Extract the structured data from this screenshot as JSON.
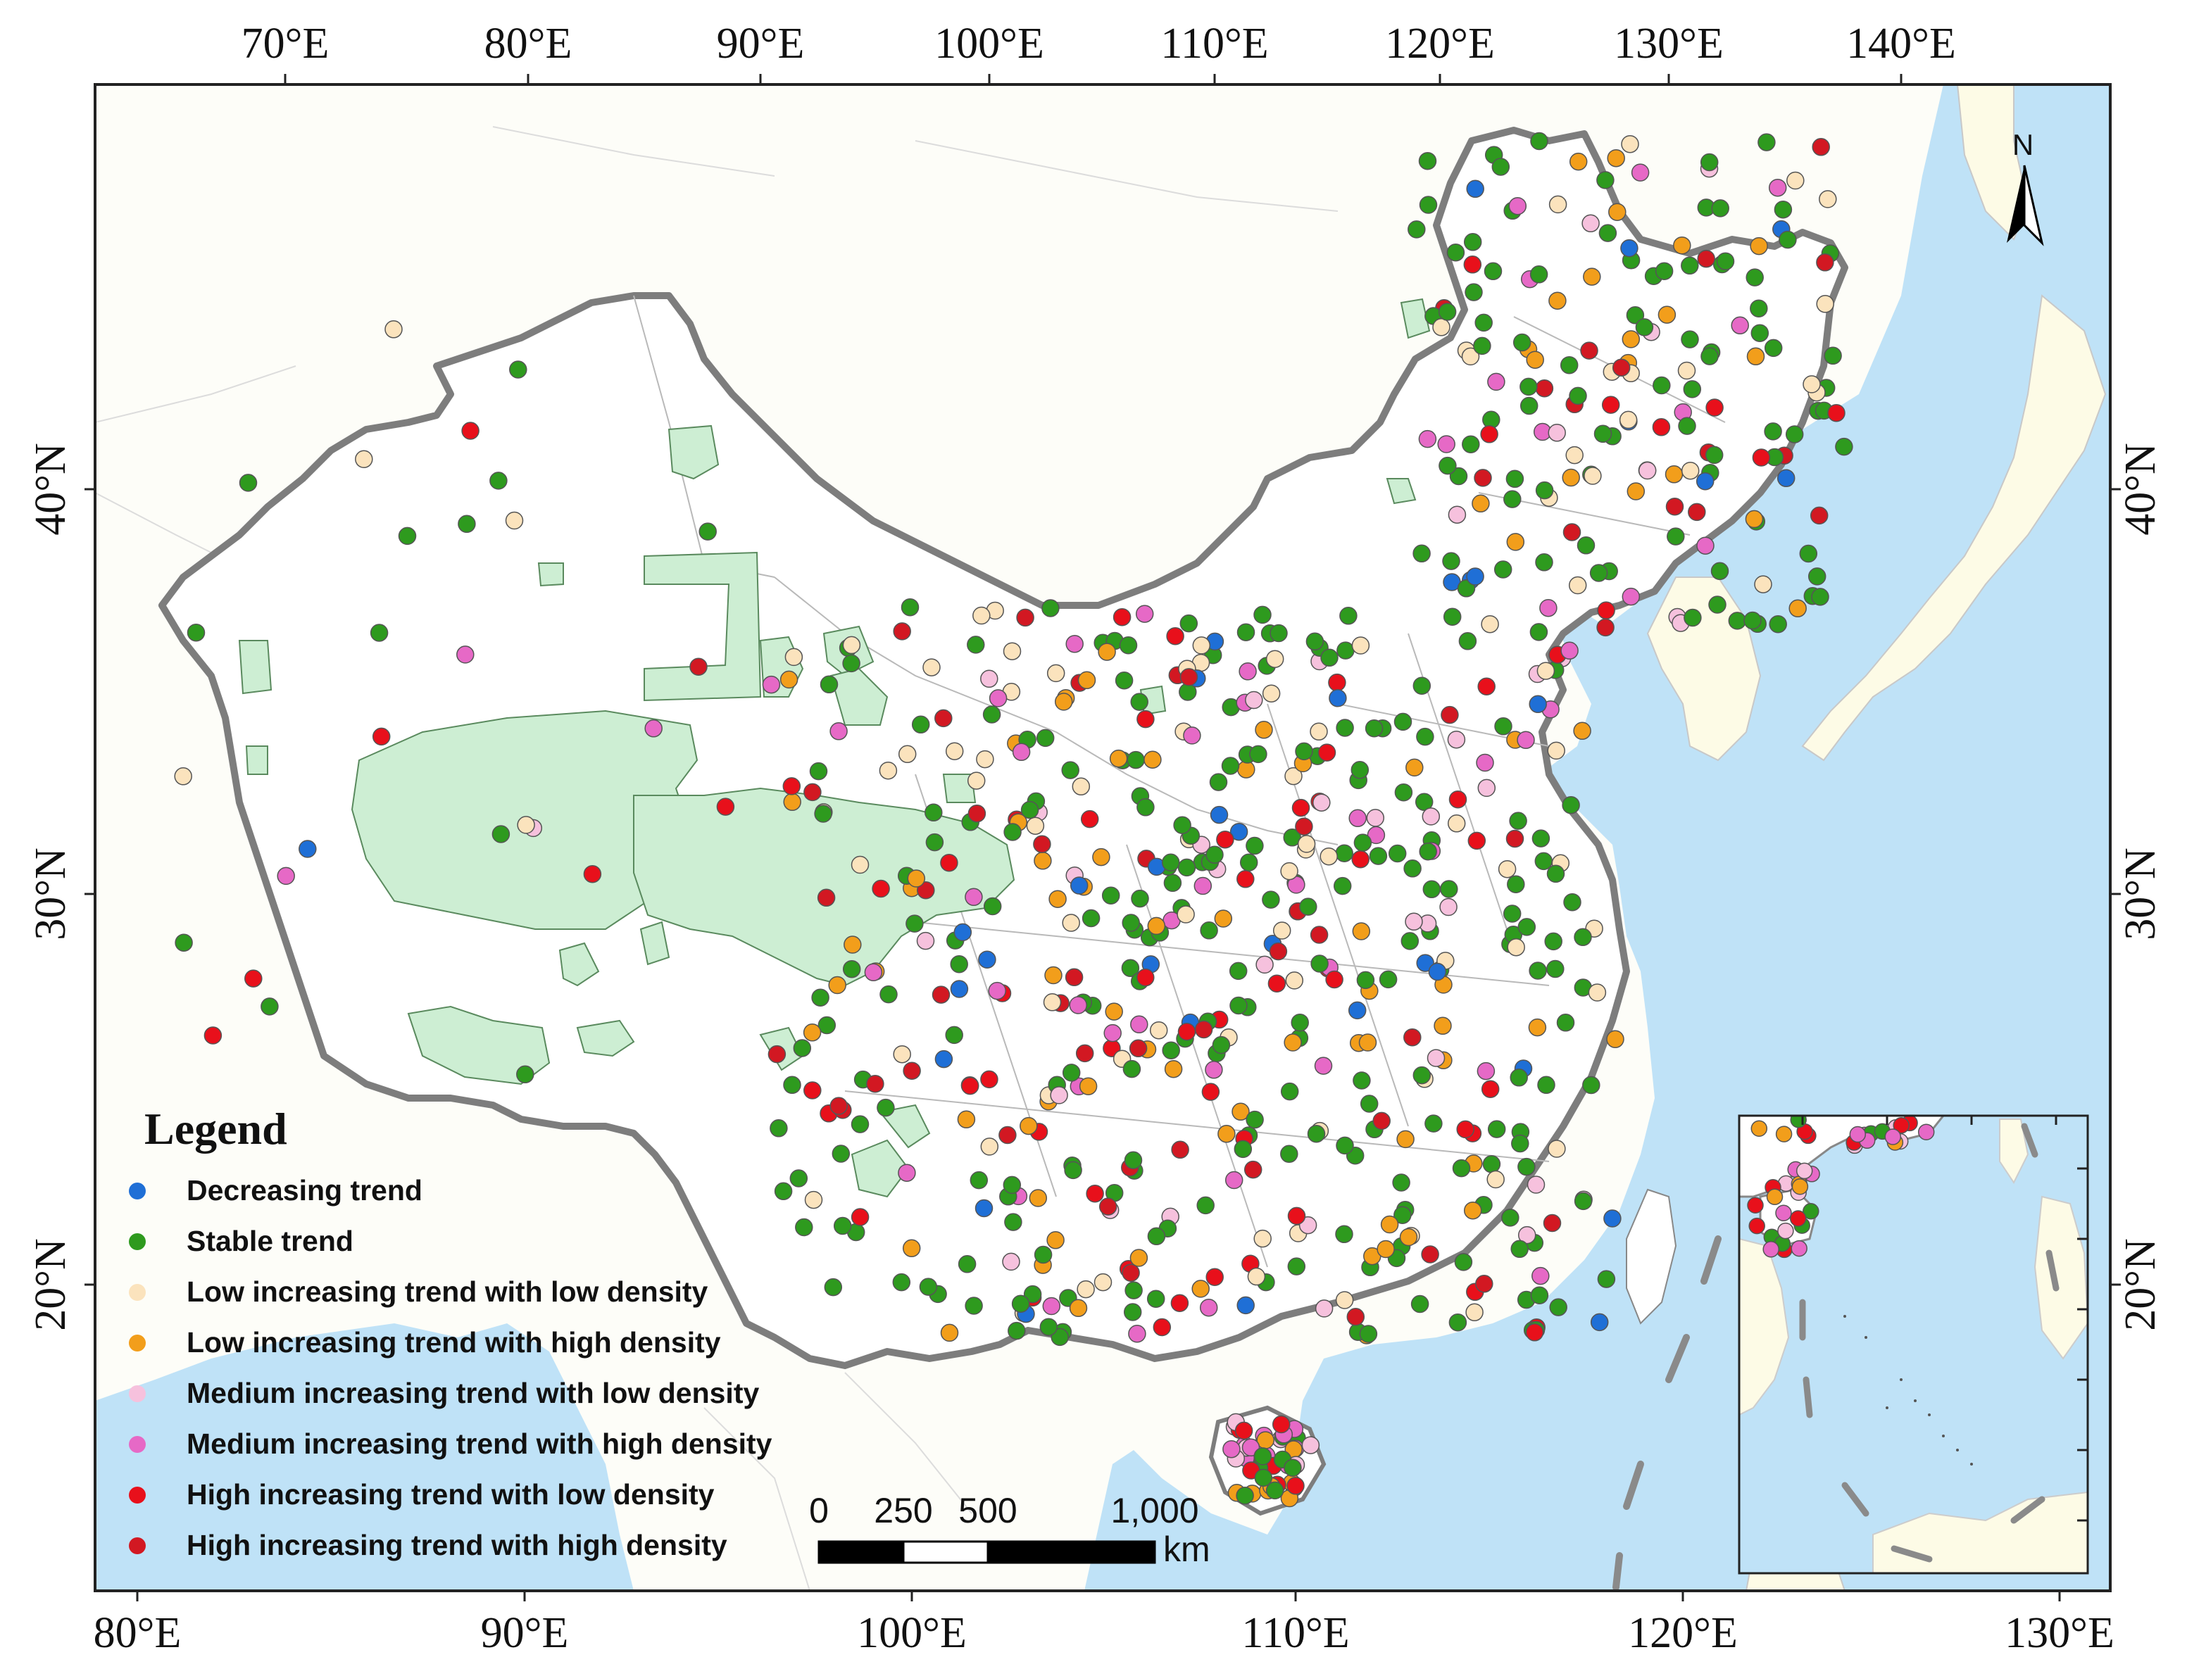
{
  "axes": {
    "top_lon": [
      "70°E",
      "80°E",
      "90°E",
      "100°E",
      "110°E",
      "120°E",
      "130°E",
      "140°E"
    ],
    "bottom_lon": [
      "80°E",
      "90°E",
      "100°E",
      "110°E",
      "120°E",
      "130°E"
    ],
    "left_lat": [
      "40°N",
      "30°N",
      "20°N"
    ],
    "right_lat": [
      "40°N",
      "30°N",
      "20°N"
    ]
  },
  "legend": {
    "title": "Legend",
    "items": [
      {
        "label": "Decreasing trend",
        "color": "#1f6fd6"
      },
      {
        "label": "Stable trend",
        "color": "#2e9a1e"
      },
      {
        "label": "Low increasing trend with low density",
        "color": "#fbe3bd"
      },
      {
        "label": "Low increasing trend with high density",
        "color": "#f29e1b"
      },
      {
        "label": "Medium increasing trend with low density",
        "color": "#f6c1dd"
      },
      {
        "label": "Medium increasing trend with high density",
        "color": "#e669c6"
      },
      {
        "label": "High increasing trend with low density",
        "color": "#e8101b"
      },
      {
        "label": "High increasing trend with high density",
        "color": "#d21822"
      }
    ]
  },
  "scale_bar": {
    "labels": [
      "0",
      "250",
      "500",
      "1,000"
    ],
    "unit": "km"
  },
  "north_arrow": {
    "label": "N"
  },
  "colors": {
    "sea": "#bfe2f7",
    "land": "#ffffff",
    "neighbor_land": "#fdfbe6",
    "reserve": "#cdeed3",
    "border": "#8a8a8a"
  }
}
